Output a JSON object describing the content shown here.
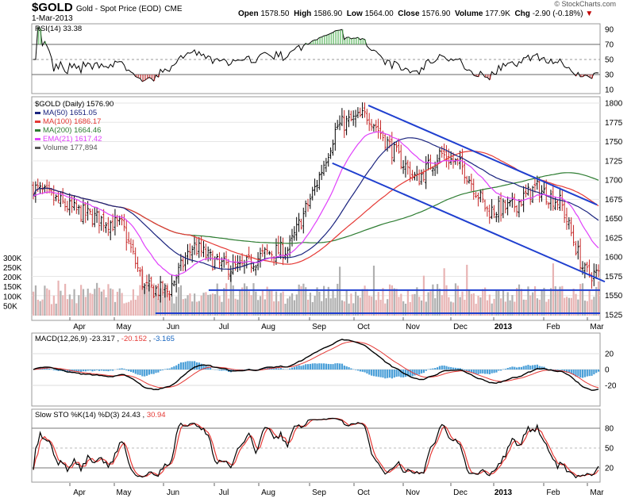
{
  "header": {
    "symbol": "$GOLD",
    "name": "Gold - Spot Price (EOD)",
    "exchange": "CME",
    "date": "1-Mar-2013",
    "open_label": "Open",
    "open": "1578.50",
    "high_label": "High",
    "high": "1586.90",
    "low_label": "Low",
    "low": "1564.00",
    "close_label": "Close",
    "close": "1576.90",
    "volume_label": "Volume",
    "volume": "177.9K",
    "chg_label": "Chg",
    "chg": "-2.90 (-0.18%)",
    "watermark": "© StockCharts.com"
  },
  "colors": {
    "ma50": "#1a237e",
    "ma100": "#e53935",
    "ma200": "#2e7d32",
    "ema21": "#e040fb",
    "volume": "#9e9e9e",
    "channel": "#1f3fcf",
    "up": "#000000",
    "down": "#c62828"
  },
  "months": [
    "Apr",
    "May",
    "Jun",
    "Jul",
    "Aug",
    "Sep",
    "Oct",
    "Nov",
    "Dec",
    "2013",
    "Feb",
    "Mar"
  ],
  "rsi_panel": {
    "label": "RSI(14) 33.38",
    "ticks": [
      "90",
      "70",
      "50",
      "30",
      "10"
    ]
  },
  "price_panel": {
    "legend": [
      {
        "text": "$GOLD (Daily) 1576.90"
      },
      {
        "text": "MA(50) 1651.05"
      },
      {
        "text": "MA(100) 1686.17"
      },
      {
        "text": "MA(200) 1664.46"
      },
      {
        "text": "EMA(21) 1617.42"
      },
      {
        "text": "Volume 177,894"
      }
    ],
    "ticks": [
      "1800",
      "1775",
      "1750",
      "1725",
      "1700",
      "1675",
      "1650",
      "1625",
      "1600",
      "1575",
      "1550",
      "1525"
    ],
    "vol_ticks": [
      "300K",
      "250K",
      "200K",
      "150K",
      "100K",
      "50K"
    ]
  },
  "macd_panel": {
    "label": "MACD(12,26,9)",
    "macd": "-23.317",
    "signal": "-20.152",
    "hist": "-3.165",
    "ticks": [
      "20",
      "0",
      "-20"
    ]
  },
  "sto_panel": {
    "label": "Slow STO %K(14) %D(3)",
    "k": "24.43",
    "d": "30.94",
    "ticks": [
      "80",
      "50",
      "20"
    ]
  },
  "chart_data": {
    "type": "candlestick",
    "title": "$GOLD Gold - Spot Price (EOD)",
    "x_range": [
      "2012-03",
      "2013-03-01"
    ],
    "ylim": [
      1525,
      1800
    ],
    "close_path_approx": [
      {
        "x": "2012-03",
        "y": 1690
      },
      {
        "x": "2012-04-01",
        "y": 1660
      },
      {
        "x": "2012-04-15",
        "y": 1650
      },
      {
        "x": "2012-05-01",
        "y": 1640
      },
      {
        "x": "2012-05-15",
        "y": 1560
      },
      {
        "x": "2012-05-30",
        "y": 1555
      },
      {
        "x": "2012-06-15",
        "y": 1615
      },
      {
        "x": "2012-07-01",
        "y": 1590
      },
      {
        "x": "2012-07-15",
        "y": 1585
      },
      {
        "x": "2012-08-01",
        "y": 1605
      },
      {
        "x": "2012-08-15",
        "y": 1610
      },
      {
        "x": "2012-09-01",
        "y": 1690
      },
      {
        "x": "2012-09-15",
        "y": 1770
      },
      {
        "x": "2012-10-05",
        "y": 1785
      },
      {
        "x": "2012-10-20",
        "y": 1740
      },
      {
        "x": "2012-11-05",
        "y": 1700
      },
      {
        "x": "2012-11-20",
        "y": 1735
      },
      {
        "x": "2012-12-05",
        "y": 1715
      },
      {
        "x": "2012-12-20",
        "y": 1660
      },
      {
        "x": "2013-01-05",
        "y": 1665
      },
      {
        "x": "2013-01-20",
        "y": 1690
      },
      {
        "x": "2013-02-05",
        "y": 1670
      },
      {
        "x": "2013-02-20",
        "y": 1580
      },
      {
        "x": "2013-03-01",
        "y": 1577
      }
    ],
    "series_last": [
      {
        "name": "MA(50)",
        "value": 1651.05
      },
      {
        "name": "MA(100)",
        "value": 1686.17
      },
      {
        "name": "MA(200)",
        "value": 1664.46
      },
      {
        "name": "EMA(21)",
        "value": 1617.42
      }
    ],
    "volume_last": 177894,
    "rsi_last": 33.38,
    "macd_last": {
      "macd": -23.317,
      "signal": -20.152,
      "hist": -3.165
    },
    "sto_last": {
      "k": 24.43,
      "d": 30.94
    },
    "trendlines": [
      {
        "name": "channel-upper",
        "from": {
          "x": "2012-10-05",
          "y": 1797
        },
        "to": {
          "x": "2013-02-28",
          "y": 1668
        }
      },
      {
        "name": "channel-lower",
        "from": {
          "x": "2012-09-12",
          "y": 1722
        },
        "to": {
          "x": "2013-03-01",
          "y": 1570
        }
      },
      {
        "name": "support-1557",
        "y": 1557
      },
      {
        "name": "support-1527",
        "y": 1527
      }
    ]
  }
}
